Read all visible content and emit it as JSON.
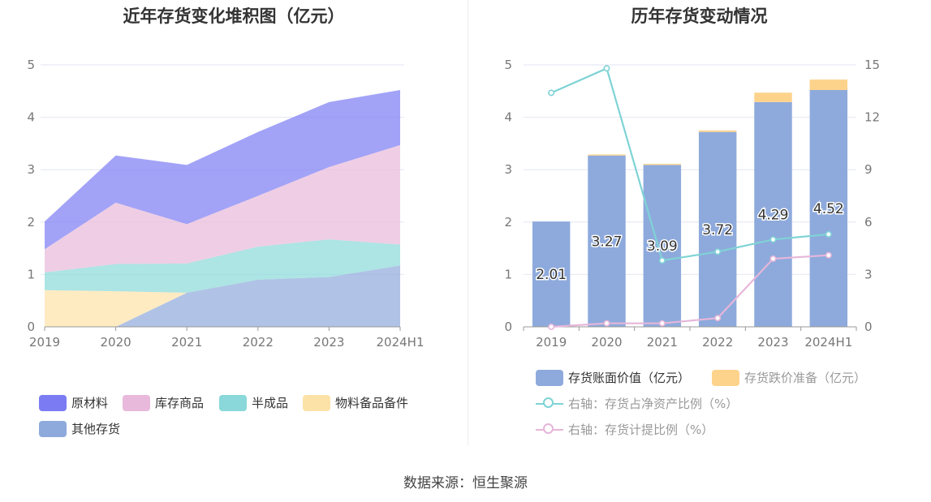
{
  "left_chart": {
    "title": "近年存货变化堆积图（亿元）"
  },
  "right_chart": {
    "title": "历年存货变动情况"
  },
  "source": "数据来源：恒生聚源",
  "chart_data": [
    {
      "type": "area",
      "title": "近年存货变化堆积图（亿元）",
      "stacked": true,
      "categories": [
        "2019",
        "2020",
        "2021",
        "2022",
        "2023",
        "2024H1"
      ],
      "ylim": [
        0,
        5
      ],
      "yticks": [
        0,
        1,
        2,
        3,
        4,
        5
      ],
      "grid": true,
      "legend_position": "bottom",
      "series": [
        {
          "name": "其他存货",
          "color": "#8eaadc",
          "values": [
            0,
            0,
            0.65,
            0.9,
            0.95,
            1.17
          ]
        },
        {
          "name": "物料备品备件",
          "color": "#fde2a8",
          "values": [
            0.7,
            0.68,
            0,
            0,
            0,
            0
          ]
        },
        {
          "name": "半成品",
          "color": "#8ad8d9",
          "values": [
            0.34,
            0.52,
            0.56,
            0.63,
            0.72,
            0.4
          ]
        },
        {
          "name": "库存商品",
          "color": "#e8b9da",
          "values": [
            0.44,
            1.17,
            0.75,
            0.97,
            1.38,
            1.9
          ]
        },
        {
          "name": "原材料",
          "color": "#7b7cf3",
          "values": [
            0.53,
            0.9,
            1.13,
            1.22,
            1.24,
            1.05
          ]
        }
      ],
      "legend": [
        {
          "name": "原材料",
          "color": "#7b7cf3"
        },
        {
          "name": "库存商品",
          "color": "#e8b9da"
        },
        {
          "name": "半成品",
          "color": "#8ad8d9"
        },
        {
          "name": "物料备品备件",
          "color": "#fde2a8"
        },
        {
          "name": "其他存货",
          "color": "#8eaadc"
        }
      ]
    },
    {
      "type": "bar",
      "title": "历年存货变动情况",
      "stacked": true,
      "categories": [
        "2019",
        "2020",
        "2021",
        "2022",
        "2023",
        "2024H1"
      ],
      "ylim": [
        0,
        5
      ],
      "yticks": [
        0,
        1,
        2,
        3,
        4,
        5
      ],
      "y2lim": [
        0,
        15
      ],
      "y2ticks": [
        0,
        3,
        6,
        9,
        12,
        15
      ],
      "grid": true,
      "legend_position": "bottom",
      "series": [
        {
          "name": "存货账面价值（亿元）",
          "type": "bar",
          "color": "#8eaadc",
          "values": [
            2.01,
            3.27,
            3.09,
            3.72,
            4.29,
            4.52
          ],
          "labels": [
            "2.01",
            "3.27",
            "3.09",
            "3.72",
            "4.29",
            "4.52"
          ]
        },
        {
          "name": "存货跌价准备（亿元）",
          "type": "bar",
          "color": "#fdd38c",
          "values": [
            0,
            0.02,
            0.02,
            0.03,
            0.18,
            0.2
          ]
        },
        {
          "name": "右轴：存货占净资产比例（%）",
          "type": "line",
          "axis": "right",
          "color": "#7fd3d5",
          "values": [
            13.4,
            14.8,
            3.8,
            4.3,
            5.0,
            5.3
          ]
        },
        {
          "name": "右轴：存货计提比例（%）",
          "type": "line",
          "axis": "right",
          "color": "#e6b6d9",
          "values": [
            0,
            0.2,
            0.2,
            0.5,
            3.9,
            4.1
          ]
        }
      ]
    }
  ]
}
